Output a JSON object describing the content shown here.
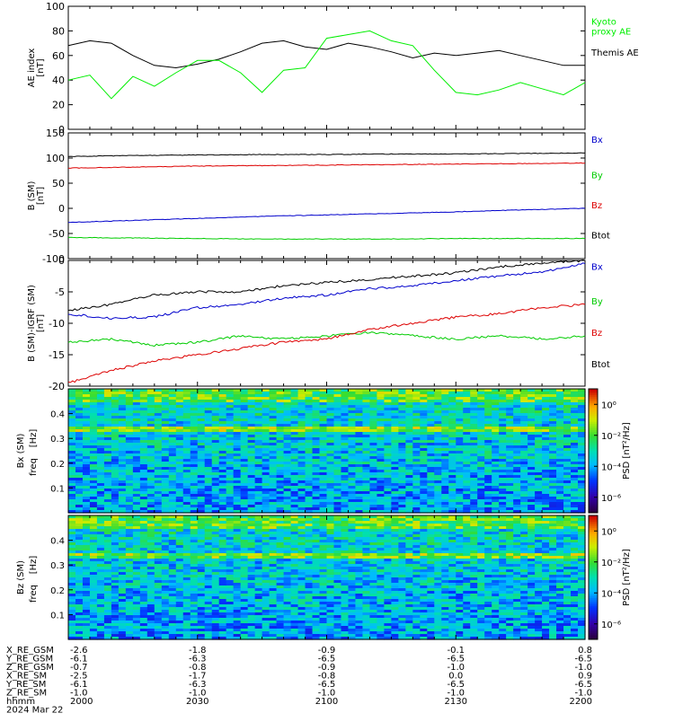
{
  "figure_title": "",
  "chart_data": [
    {
      "type": "line",
      "panel": "ae",
      "ylabel": "AE index",
      "yunit": "[nT]",
      "ylim": [
        0,
        100
      ],
      "yticks": [
        0,
        20,
        40,
        60,
        80,
        100
      ],
      "grid": false,
      "x": [
        2000,
        2005,
        2010,
        2015,
        2020,
        2025,
        2030,
        2035,
        2040,
        2045,
        2050,
        2055,
        2100,
        2105,
        2110,
        2115,
        2120,
        2125,
        2130,
        2135,
        2140,
        2145,
        2150,
        2155,
        2200
      ],
      "series": [
        {
          "name": "Themis AE",
          "color": "#000000",
          "legend_y": 60,
          "values": [
            68,
            72,
            70,
            60,
            52,
            50,
            53,
            57,
            63,
            70,
            72,
            67,
            65,
            70,
            67,
            63,
            58,
            62,
            60,
            62,
            64,
            60,
            56,
            52,
            52
          ]
        },
        {
          "name": "Kyoto",
          "name2": "proxy AE",
          "color": "#00ee00",
          "legend_y": 85,
          "values": [
            40,
            44,
            25,
            43,
            35,
            46,
            56,
            56,
            46,
            30,
            48,
            50,
            74,
            77,
            80,
            72,
            68,
            48,
            30,
            28,
            32,
            38,
            33,
            28,
            38
          ]
        }
      ]
    },
    {
      "type": "line",
      "panel": "bsm",
      "ylabel": "B (SM)",
      "yunit": "[nT]",
      "ylim": [
        -100,
        150
      ],
      "yticks": [
        -100,
        -50,
        0,
        50,
        100,
        150
      ],
      "grid": false,
      "x": [
        2000,
        2015,
        2030,
        2045,
        2100,
        2115,
        2130,
        2145,
        2200
      ],
      "series": [
        {
          "name": "Bx",
          "color": "#0000cc",
          "legend_y": 130,
          "values": [
            -28,
            -24,
            -20,
            -16,
            -13,
            -10,
            -7,
            -3,
            0
          ]
        },
        {
          "name": "By",
          "color": "#00cc00",
          "legend_y": 60,
          "values": [
            -58,
            -59,
            -60,
            -61,
            -61,
            -61,
            -60,
            -60,
            -60
          ]
        },
        {
          "name": "Bz",
          "color": "#dd0000",
          "legend_y": 0,
          "values": [
            80,
            82,
            84,
            85,
            86,
            87,
            88,
            89,
            90
          ]
        },
        {
          "name": "Btot",
          "color": "#000000",
          "legend_y": -60,
          "values": [
            103,
            105,
            106,
            107,
            107,
            108,
            108,
            109,
            110
          ]
        }
      ]
    },
    {
      "type": "line",
      "panel": "bdiff",
      "ylabel": "B (SM)-IGRF (SM)",
      "yunit": "[nT]",
      "ylim": [
        -20,
        0
      ],
      "yticks": [
        -20,
        -15,
        -10,
        -5,
        0
      ],
      "grid": false,
      "x": [
        2000,
        2010,
        2020,
        2030,
        2040,
        2050,
        2100,
        2110,
        2120,
        2130,
        2140,
        2150,
        2200
      ],
      "series": [
        {
          "name": "Bx",
          "color": "#0000cc",
          "legend_y": -1.5,
          "values": [
            -8.5,
            -9.2,
            -9.0,
            -7.5,
            -7.0,
            -6.0,
            -5.5,
            -4.5,
            -4.0,
            -3.2,
            -2.5,
            -1.8,
            -0.5
          ]
        },
        {
          "name": "By",
          "color": "#00cc00",
          "legend_y": -7,
          "values": [
            -13.0,
            -12.5,
            -13.5,
            -13.0,
            -12.0,
            -12.5,
            -12.0,
            -11.5,
            -12.0,
            -12.5,
            -12.0,
            -12.5,
            -12.0
          ]
        },
        {
          "name": "Bz",
          "color": "#dd0000",
          "legend_y": -12,
          "values": [
            -19.5,
            -17.5,
            -16.0,
            -15.0,
            -14.0,
            -13.0,
            -12.5,
            -11.0,
            -10.0,
            -9.0,
            -8.5,
            -7.5,
            -7.0
          ]
        },
        {
          "name": "Btot",
          "color": "#000000",
          "legend_y": -17,
          "values": [
            -8.0,
            -7.0,
            -5.5,
            -5.0,
            -5.0,
            -4.0,
            -3.5,
            -3.0,
            -2.5,
            -2.0,
            -1.0,
            -0.5,
            0.0
          ]
        }
      ]
    },
    {
      "type": "heatmap",
      "panel": "bx_spec",
      "ylabel": "Bx (SM)",
      "ylabel2": "freq",
      "yunit": "[Hz]",
      "ylim": [
        0,
        0.5
      ],
      "yticks": [
        0.1,
        0.2,
        0.3,
        0.4
      ],
      "colorbar_label": "PSD [nT²/Hz]",
      "colorbar_ticks": [
        "10⁰",
        "10⁻²",
        "10⁻⁴",
        "10⁻⁶"
      ],
      "colorbar_exponents": [
        0,
        -2,
        -4,
        -6
      ],
      "clim_exponent": [
        -7,
        1
      ],
      "seed": 11
    },
    {
      "type": "heatmap",
      "panel": "bz_spec",
      "ylabel": "Bz (SM)",
      "ylabel2": "freq",
      "yunit": "[Hz]",
      "ylim": [
        0,
        0.5
      ],
      "yticks": [
        0.1,
        0.2,
        0.3,
        0.4
      ],
      "colorbar_label": "PSD [nT²/Hz]",
      "colorbar_ticks": [
        "10⁰",
        "10⁻²",
        "10⁻⁴",
        "10⁻⁶"
      ],
      "colorbar_exponents": [
        0,
        -2,
        -4,
        -6
      ],
      "clim_exponent": [
        -7,
        1
      ],
      "seed": 29
    }
  ],
  "xaxis": {
    "time_ticks": [
      2000,
      2030,
      2100,
      2130,
      2200
    ],
    "rows": [
      {
        "label": "X_RE_GSM",
        "values": [
          "-2.6",
          "-1.8",
          "-0.9",
          "-0.1",
          "0.8"
        ]
      },
      {
        "label": "Y_RE_GSM",
        "values": [
          "-6.1",
          "-6.3",
          "-6.5",
          "-6.5",
          "-6.5"
        ]
      },
      {
        "label": "Z_RE_GSM",
        "values": [
          "-0.7",
          "-0.8",
          "-0.9",
          "-1.0",
          "-1.0"
        ]
      },
      {
        "label": "X_RE_SM",
        "values": [
          "-2.5",
          "-1.7",
          "-0.8",
          "0.0",
          "0.9"
        ]
      },
      {
        "label": "Y_RE_SM",
        "values": [
          "-6.1",
          "-6.3",
          "-6.5",
          "-6.5",
          "-6.5"
        ]
      },
      {
        "label": "Z_RE_SM",
        "values": [
          "-1.0",
          "-1.0",
          "-1.0",
          "-1.0",
          "-1.0"
        ]
      },
      {
        "label": "hhmm",
        "values": [
          "2000",
          "2030",
          "2100",
          "2130",
          "2200"
        ]
      }
    ],
    "date_label": "2024 Mar 22"
  }
}
